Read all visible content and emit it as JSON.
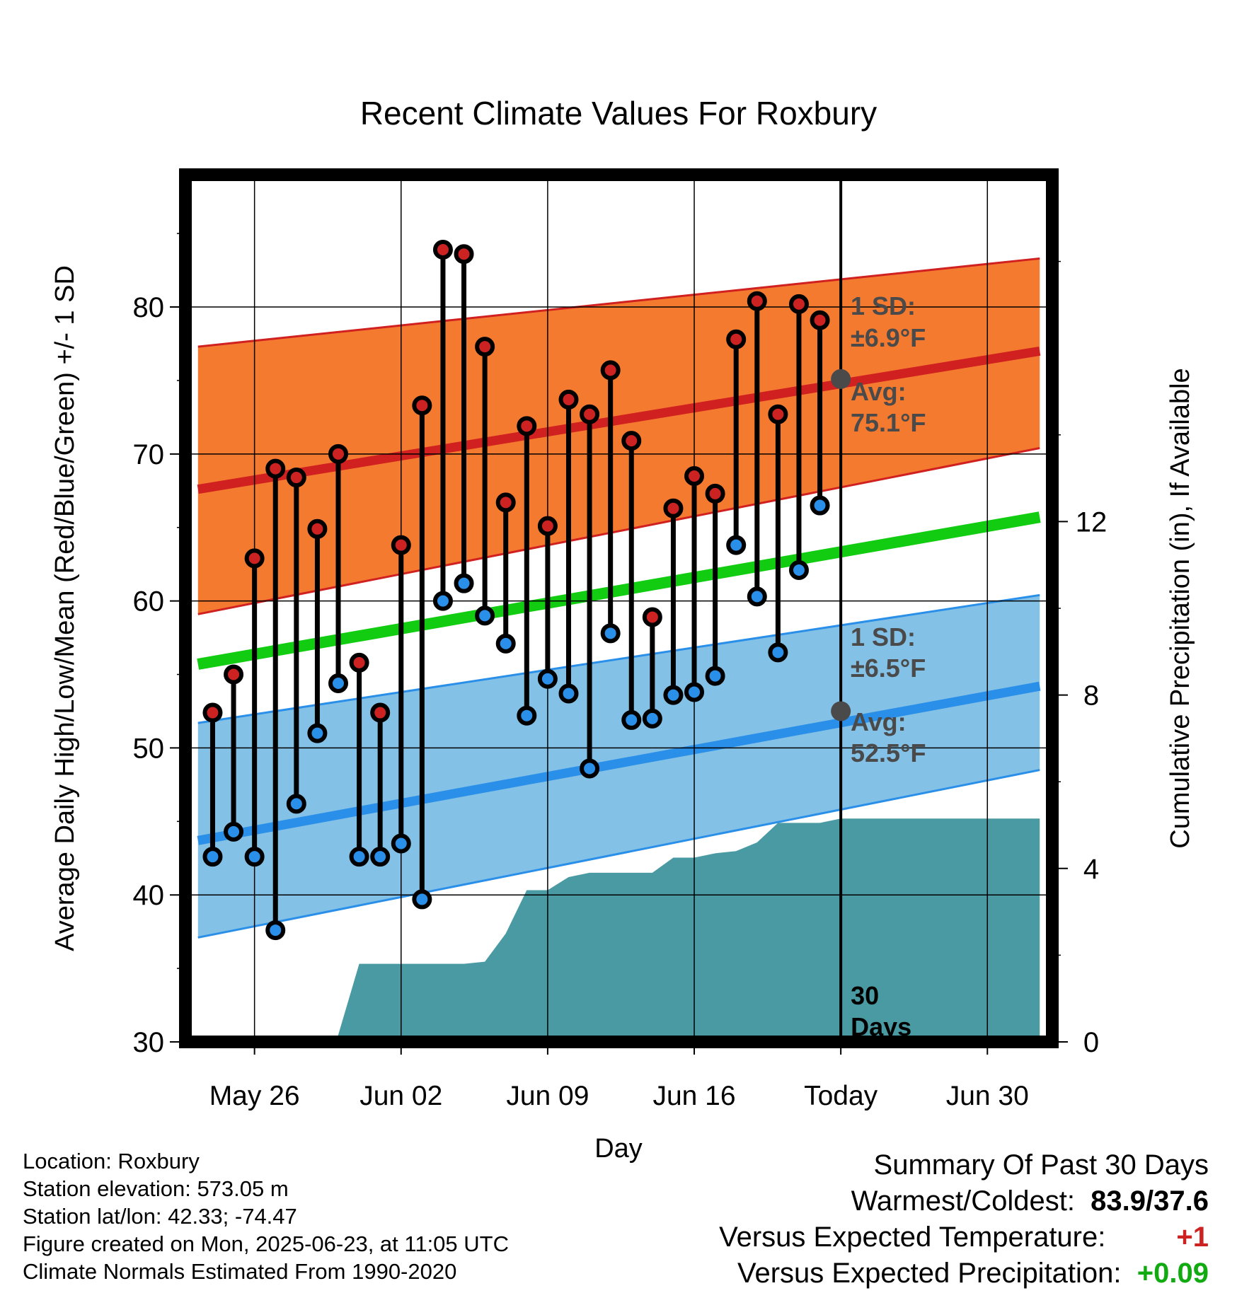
{
  "chart_data": {
    "type": "line",
    "title": "Recent Climate Values For Roxbury",
    "xlabel": "Day",
    "ylabel_left": "Average Daily High/Low/Mean (Red/Blue/Green) +/- 1 SD",
    "ylabel_right": "Cumulative Precipitation (in), If Available",
    "ylim": [
      30,
      89
    ],
    "y2lim": [
      0,
      20
    ],
    "xlim": [
      -3.3,
      38.1
    ],
    "x_ticks": [
      {
        "day": 0,
        "label": "May 26"
      },
      {
        "day": 7,
        "label": "Jun 02"
      },
      {
        "day": 14,
        "label": "Jun 09"
      },
      {
        "day": 21,
        "label": "Jun 16"
      },
      {
        "day": 28,
        "label": "Today"
      },
      {
        "day": 35,
        "label": "Jun 30"
      }
    ],
    "y_ticks": [
      30,
      40,
      50,
      60,
      70,
      80
    ],
    "y2_ticks": [
      0,
      4,
      8,
      12
    ],
    "grid": true,
    "today_day": 28,
    "days_label": "30\nDays",
    "series": [
      {
        "name": "High",
        "color": "#cc2222",
        "x": [
          -2,
          -1,
          0,
          1,
          2,
          3,
          4,
          5,
          6,
          7,
          8,
          9,
          10,
          11,
          12,
          13,
          14,
          15,
          16,
          17,
          18,
          19,
          20,
          21,
          22,
          23,
          24,
          25,
          26,
          27
        ],
        "values": [
          52.4,
          55.0,
          62.9,
          69.0,
          68.4,
          64.9,
          70.0,
          55.8,
          52.4,
          63.8,
          73.3,
          83.9,
          83.6,
          77.3,
          66.7,
          71.9,
          65.1,
          73.7,
          72.7,
          75.7,
          70.9,
          58.9,
          66.3,
          68.5,
          67.3,
          77.8,
          80.4,
          72.7,
          80.2,
          79.1
        ]
      },
      {
        "name": "Low",
        "color": "#2a8fe8",
        "x": [
          -2,
          -1,
          0,
          1,
          2,
          3,
          4,
          5,
          6,
          7,
          8,
          9,
          10,
          11,
          12,
          13,
          14,
          15,
          16,
          17,
          18,
          19,
          20,
          21,
          22,
          23,
          24,
          25,
          26,
          27
        ],
        "values": [
          42.6,
          44.3,
          42.6,
          37.6,
          46.2,
          51.0,
          54.4,
          42.6,
          42.6,
          43.5,
          39.7,
          60.0,
          61.2,
          59.0,
          57.1,
          52.2,
          54.7,
          53.7,
          48.6,
          57.8,
          51.9,
          52.0,
          53.6,
          53.8,
          54.9,
          63.8,
          60.3,
          56.5,
          62.1,
          66.5
        ]
      }
    ],
    "normals": {
      "x": [
        -2.7,
        37.5
      ],
      "high_avg": [
        67.6,
        77.0
      ],
      "high_upper": [
        77.3,
        83.3
      ],
      "high_lower": [
        59.1,
        70.4
      ],
      "mean": [
        55.7,
        65.7
      ],
      "low_avg": [
        43.7,
        54.2
      ],
      "low_upper": [
        51.7,
        60.4
      ],
      "low_lower": [
        37.1,
        48.5
      ]
    },
    "precip": {
      "x": [
        3.9,
        5,
        6,
        7,
        8,
        9,
        10,
        11,
        12,
        13,
        14,
        15,
        16,
        17,
        18,
        19,
        20,
        21,
        22,
        23,
        24,
        25,
        26,
        27,
        28,
        37.5
      ],
      "values": [
        0,
        1.8,
        1.8,
        1.8,
        1.8,
        1.8,
        1.8,
        1.85,
        2.5,
        3.5,
        3.5,
        3.8,
        3.9,
        3.9,
        3.9,
        3.9,
        4.25,
        4.25,
        4.35,
        4.4,
        4.6,
        5.05,
        5.05,
        5.05,
        5.15,
        5.15
      ]
    },
    "annotations": {
      "high_sd": {
        "line1": "1 SD:",
        "line2": "±6.9°F"
      },
      "high_avg": {
        "line1": "Avg:",
        "line2": "75.1°F",
        "value": 75.1
      },
      "low_sd": {
        "line1": "1 SD:",
        "line2": "±6.5°F"
      },
      "low_avg": {
        "line1": "Avg:",
        "line2": "52.5°F",
        "value": 52.5
      }
    },
    "colors": {
      "high_band": "#f47a30",
      "high_line": "#d02020",
      "low_band": "#84c1e6",
      "low_line": "#2a8fe8",
      "mean_line": "#11cc11",
      "precip": "#4a9aa4"
    }
  },
  "footer": {
    "location": "Location: Roxbury",
    "elevation": "Station elevation: 573.05 m",
    "latlon": "Station lat/lon: 42.33; -74.47",
    "created": "Figure created on Mon, 2025-06-23, at 11:05 UTC",
    "normals": "Climate Normals Estimated From 1990-2020"
  },
  "summary": {
    "title": "Summary Of Past 30 Days",
    "warm_cold_label": "Warmest/Coldest:",
    "warm_cold_value": "83.9/37.6",
    "temp_label": "Versus Expected Temperature:",
    "temp_value": "+1",
    "temp_color": "#cc2222",
    "precip_label": "Versus Expected Precipitation:",
    "precip_value": "+0.09",
    "precip_color": "#11aa11"
  }
}
